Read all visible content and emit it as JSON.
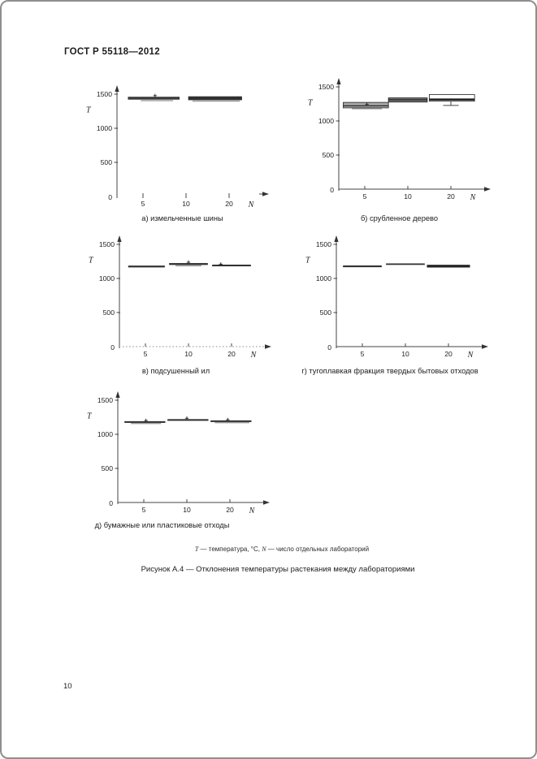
{
  "page": {
    "header_title": "ГОСТ Р 55118—2012",
    "page_number": "10",
    "footnote": {
      "t_symbol": "Т",
      "t_text": " —  температура, °С, ",
      "n_symbol": "N",
      "n_text": " — число отдельных лабораторий"
    },
    "figure_caption": "Рисунок А.4 — Отклонения температуры растекания между лабораториями"
  },
  "axes_common": {
    "y_label": "T",
    "x_label": "N",
    "y_ticks": [
      0,
      500,
      1000,
      1500
    ],
    "x_ticks": [
      5,
      10,
      20
    ],
    "y_range": [
      0,
      1600
    ],
    "x_axis_arrow": true,
    "grid": "off"
  },
  "chart_data": [
    {
      "type": "box",
      "id": "a",
      "label": "а) измельченные шины",
      "axis_style": "none",
      "x_categories": [
        5,
        10,
        20
      ],
      "boxes": [
        {
          "x1": -0.35,
          "x2": 0.85,
          "y_lo": 1420,
          "y_hi": 1462,
          "fill": "#3b3b3b",
          "underline": {
            "x1": -0.05,
            "x2": 0.7,
            "y": 1405
          },
          "marker": {
            "x": 0.28,
            "y": 1478
          }
        },
        {
          "x1": 1.05,
          "x2": 2.3,
          "y_lo": 1412,
          "y_hi": 1468,
          "fill": "#2f2f2f",
          "underline": {
            "x1": 1.15,
            "x2": 2.25,
            "y": 1398
          }
        }
      ]
    },
    {
      "type": "box",
      "id": "b",
      "label": "б) срубленное дерево",
      "axis_style": "solid",
      "x_categories": [
        5,
        10,
        20
      ],
      "boxes": [
        {
          "x1": -0.5,
          "x2": 0.55,
          "y_lo": 1192,
          "y_hi": 1272,
          "fill": "#a8a8a8",
          "stroke": "#333333",
          "median": 1222,
          "underline": {
            "x1": -0.3,
            "x2": 0.4,
            "y": 1180
          },
          "marker": {
            "x": 0.05,
            "y": 1245
          }
        },
        {
          "x1": 0.55,
          "x2": 1.45,
          "y_lo": 1278,
          "y_hi": 1338,
          "fill": "#787878",
          "stroke": "#222222",
          "median": 1310
        },
        {
          "x1": 1.5,
          "x2": 2.55,
          "y_lo": 1290,
          "y_hi": 1388,
          "fill": "#ffffff",
          "stroke": "#333333",
          "median": 1315,
          "median_thick": true,
          "whisker": {
            "x": 2.0,
            "y": 1228,
            "cap": 0.18
          }
        }
      ]
    },
    {
      "type": "box",
      "id": "v",
      "label": "в) подсушенный ил",
      "axis_style": "dotted",
      "x_categories": [
        5,
        10,
        20
      ],
      "boxes": [
        {
          "x1": -0.4,
          "x2": 0.45,
          "y_lo": 1162,
          "y_hi": 1188,
          "fill": "#2e2e2e"
        },
        {
          "x1": 0.55,
          "x2": 1.45,
          "y_lo": 1198,
          "y_hi": 1225,
          "fill": "#2e2e2e",
          "underline": {
            "x1": 0.7,
            "x2": 1.3,
            "y": 1186
          },
          "marker": {
            "x": 1.0,
            "y": 1238
          }
        },
        {
          "x1": 1.55,
          "x2": 2.45,
          "y_lo": 1178,
          "y_hi": 1202,
          "fill": "#2e2e2e",
          "marker": {
            "x": 1.75,
            "y": 1210
          }
        }
      ]
    },
    {
      "type": "box",
      "id": "g",
      "label": "г) тугоплавкая фракция твердых бытовых отходов",
      "axis_style": "solid",
      "x_categories": [
        5,
        10,
        20
      ],
      "boxes": [
        {
          "x1": -0.45,
          "x2": 0.45,
          "y_lo": 1165,
          "y_hi": 1190,
          "fill": "#2e2e2e"
        },
        {
          "x1": 0.55,
          "x2": 1.45,
          "y_lo": 1200,
          "y_hi": 1220,
          "fill": "#2e2e2e"
        },
        {
          "x1": 1.5,
          "x2": 2.5,
          "y_lo": 1160,
          "y_hi": 1200,
          "fill": "#2e2e2e",
          "median": 1182
        }
      ]
    },
    {
      "type": "box",
      "id": "d",
      "label": "д) бумажные или пластиковые отходы",
      "axis_style": "solid",
      "x_categories": [
        5,
        10,
        20
      ],
      "boxes": [
        {
          "x1": -0.45,
          "x2": 0.5,
          "y_lo": 1168,
          "y_hi": 1192,
          "fill": "#2e2e2e",
          "underline": {
            "x1": -0.3,
            "x2": 0.4,
            "y": 1158
          },
          "marker": {
            "x": 0.05,
            "y": 1202
          }
        },
        {
          "x1": 0.55,
          "x2": 1.5,
          "y_lo": 1198,
          "y_hi": 1222,
          "fill": "#2e2e2e",
          "marker": {
            "x": 1.0,
            "y": 1235
          }
        },
        {
          "x1": 1.55,
          "x2": 2.5,
          "y_lo": 1180,
          "y_hi": 1204,
          "fill": "#2e2e2e",
          "underline": {
            "x1": 1.65,
            "x2": 2.45,
            "y": 1170
          },
          "marker": {
            "x": 1.95,
            "y": 1214
          }
        }
      ]
    }
  ]
}
